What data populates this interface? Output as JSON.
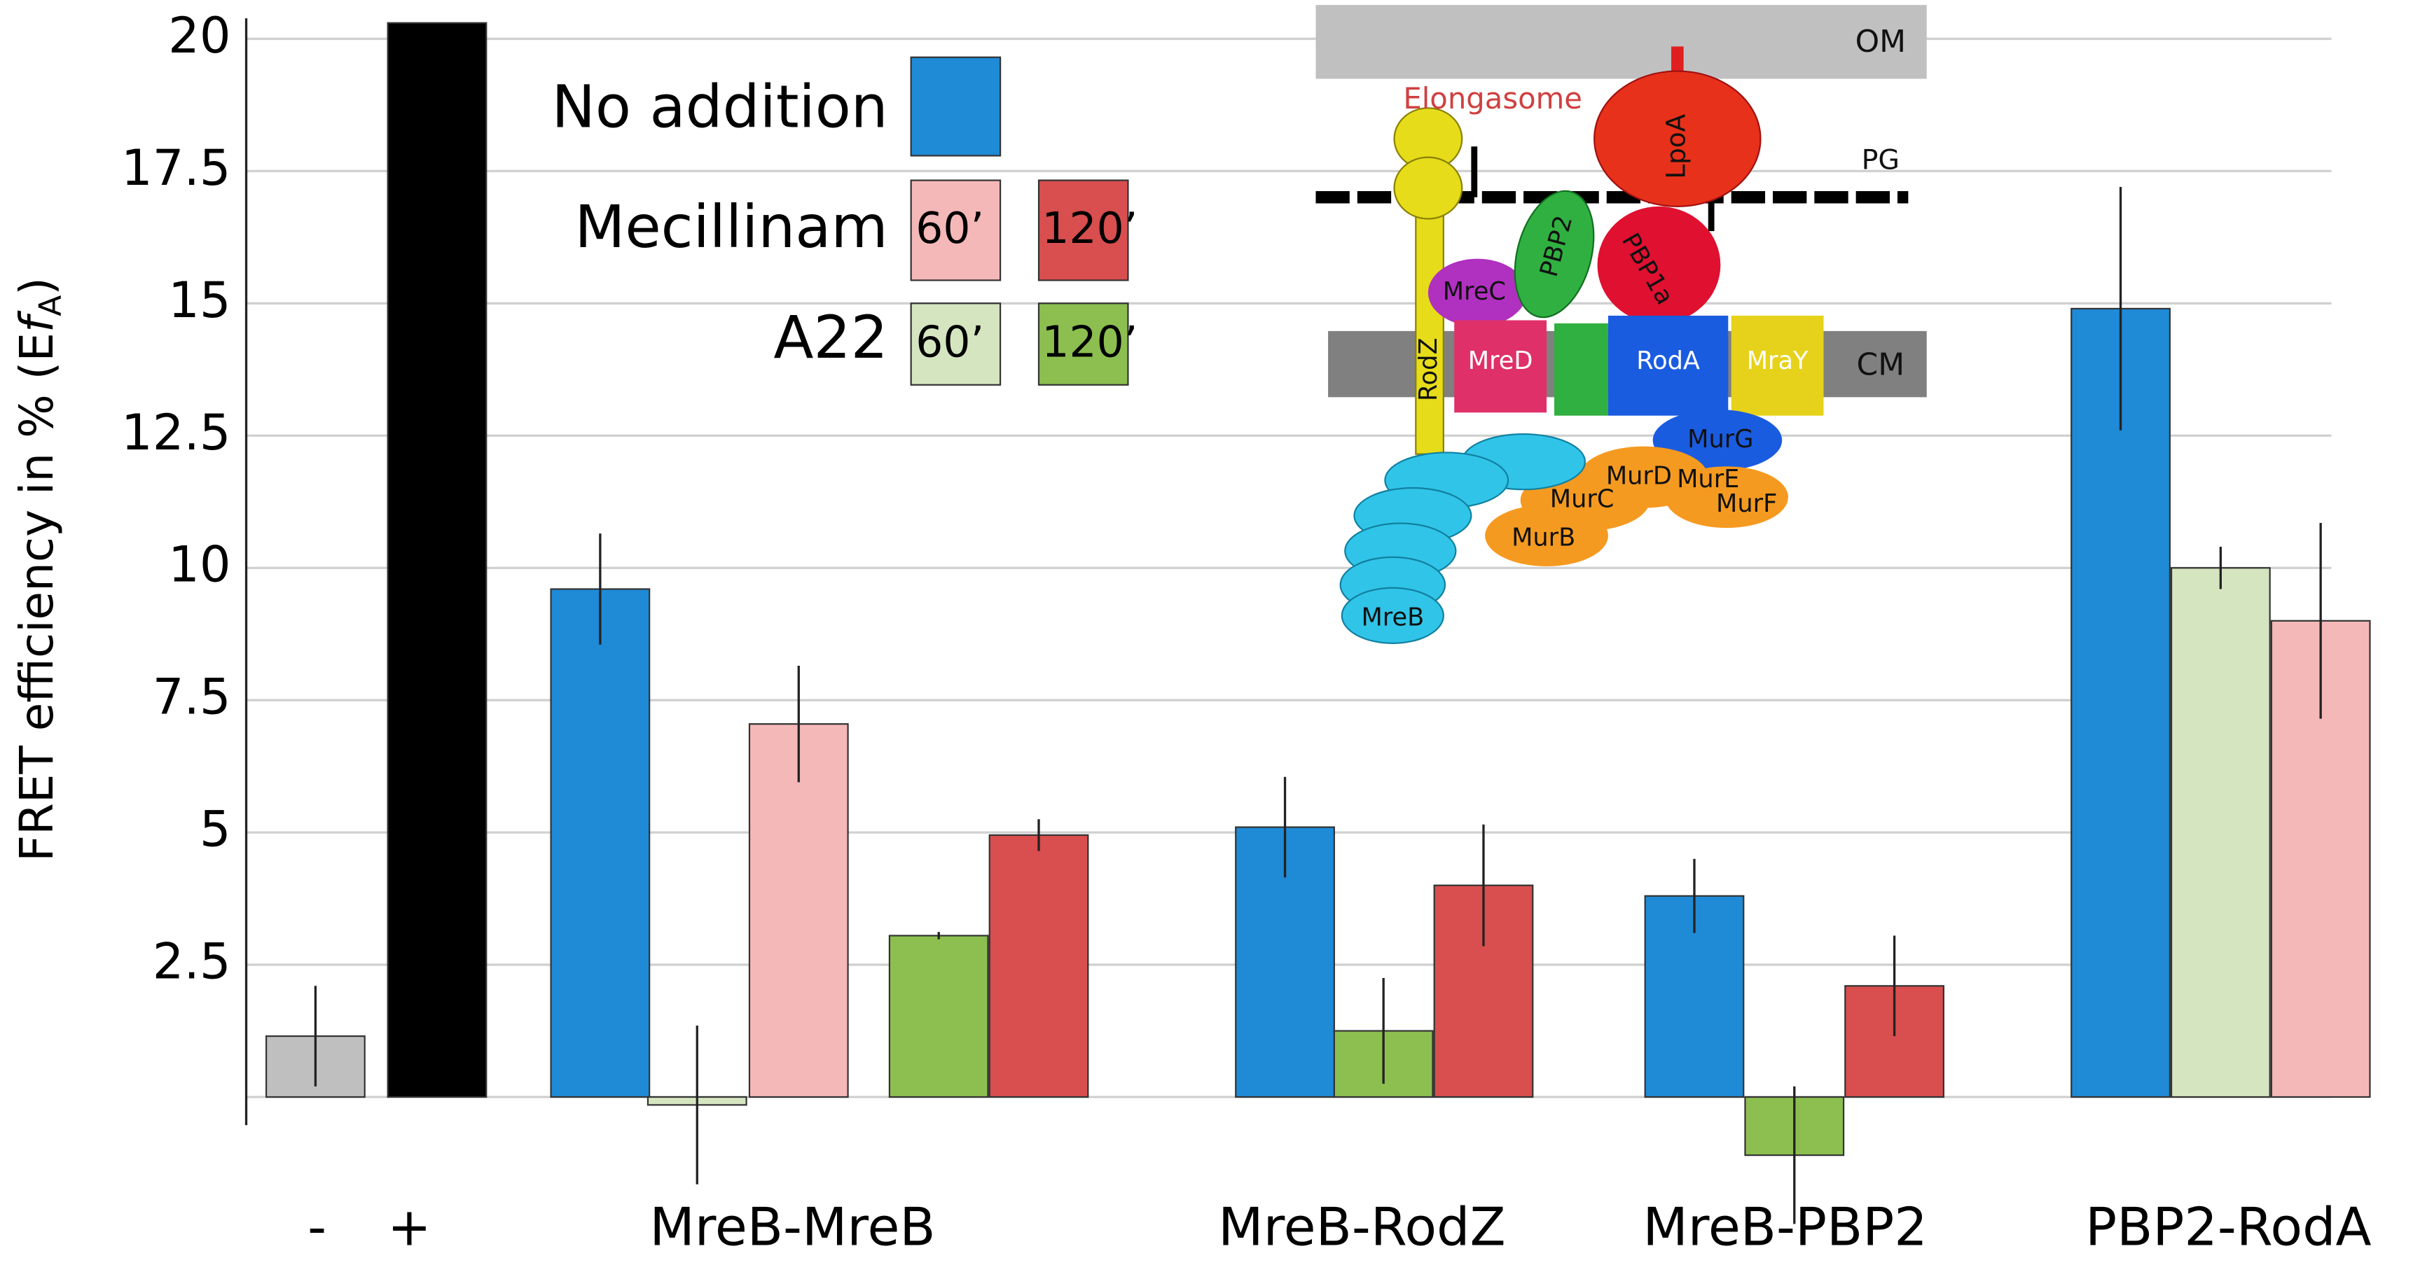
{
  "chart_data": {
    "type": "bar",
    "ylabel": {
      "text": "FRET efficiency in % (E",
      "italic": "f",
      "subscript": "A",
      "end": ")"
    },
    "categories": [
      "-",
      "+",
      "MreB-MreB",
      "MreB-RodZ",
      "MreB-PBP2",
      "PBP2-RodA"
    ],
    "series": [
      {
        "color": "#bfbfbf",
        "values": [
          1.15,
          null,
          null,
          null,
          null,
          null
        ],
        "errors": [
          0.95,
          null,
          null,
          null,
          null,
          null
        ]
      },
      {
        "color": "#000000",
        "values": [
          null,
          20.3,
          null,
          null,
          null,
          null
        ],
        "errors": [
          null,
          null,
          null,
          null,
          null,
          null
        ]
      },
      {
        "name": "No addition",
        "color": "#1f8ad6",
        "values": [
          null,
          null,
          9.6,
          5.1,
          3.8,
          14.9
        ],
        "errors": [
          null,
          null,
          1.05,
          0.95,
          0.7,
          2.3
        ]
      },
      {
        "group": "Mecillinam",
        "time": "60’",
        "color": "#f4b8b8",
        "values": [
          null,
          null,
          7.05,
          null,
          null,
          9.0
        ],
        "errors": [
          null,
          null,
          1.1,
          null,
          null,
          1.85
        ]
      },
      {
        "group": "Mecillinam",
        "time": "120’",
        "color": "#d94e4e",
        "values": [
          null,
          null,
          4.95,
          4.0,
          2.1,
          null
        ],
        "errors": [
          null,
          null,
          0.3,
          1.15,
          0.95,
          null
        ]
      },
      {
        "group": "A22",
        "time": "60’",
        "color": "#d5e5c0",
        "values": [
          null,
          null,
          -0.15,
          null,
          null,
          10.0
        ],
        "errors": [
          null,
          null,
          1.5,
          null,
          null,
          0.4
        ]
      },
      {
        "group": "A22",
        "time": "120’",
        "color": "#8cbf4f",
        "values": [
          null,
          null,
          3.05,
          1.25,
          -1.1,
          null
        ],
        "errors": [
          null,
          null,
          0.07,
          1.0,
          1.3,
          null
        ]
      }
    ],
    "ylim": [
      -0.3,
      20.3
    ],
    "yticks": [
      2.5,
      5,
      7.5,
      10,
      12.5,
      15,
      17.5,
      20
    ],
    "grid": true
  },
  "diagram": {
    "labels": {
      "om": "OM",
      "pg": "PG",
      "cm": "CM",
      "elongasome": "Elongasome",
      "lpoa": "LpoA",
      "pbp2": "PBP2",
      "pbp1a": "PBP1a",
      "mrec": "MreC",
      "rodz": "RodZ",
      "mred": "MreD",
      "roda": "RodA",
      "mray": "MraY",
      "murg": "MurG",
      "murd": "MurD",
      "mure": "MurE",
      "murf": "MurF",
      "murc": "MurC",
      "murb": "MurB",
      "mreb": "MreB"
    }
  }
}
